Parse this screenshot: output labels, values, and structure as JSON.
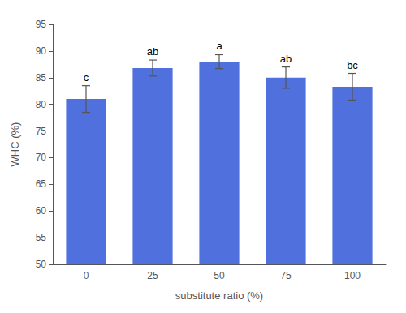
{
  "chart_data": {
    "type": "bar",
    "categories": [
      "0",
      "25",
      "50",
      "75",
      "100"
    ],
    "values": [
      81.0,
      86.8,
      88.0,
      85.0,
      83.3
    ],
    "errors": [
      2.5,
      1.5,
      1.3,
      2.0,
      2.5
    ],
    "annotations": [
      "c",
      "ab",
      "a",
      "ab",
      "bc"
    ],
    "xlabel": "substitute ratio (%)",
    "ylabel": "WHC (%)",
    "ylim": [
      50,
      95
    ],
    "yticks": [
      50,
      55,
      60,
      65,
      70,
      75,
      80,
      85,
      90,
      95
    ],
    "grid": false
  }
}
